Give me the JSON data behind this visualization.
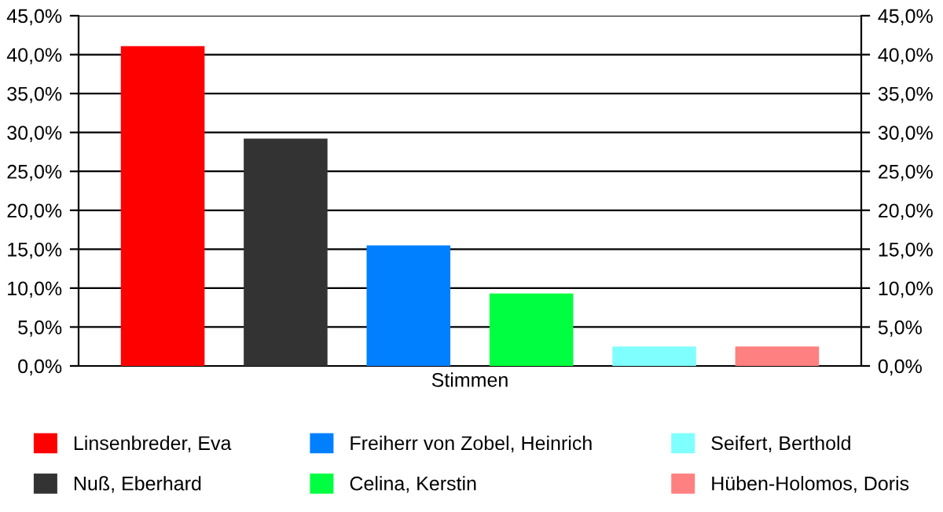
{
  "chart_data": {
    "type": "bar",
    "categories": [
      "Stimmen"
    ],
    "series": [
      {
        "name": "Linsenbreder, Eva",
        "color": "#ff0000",
        "values": [
          41.1
        ]
      },
      {
        "name": "Nuß, Eberhard",
        "color": "#333333",
        "values": [
          29.2
        ]
      },
      {
        "name": "Freiherr von Zobel, Heinrich",
        "color": "#0080ff",
        "values": [
          15.5
        ]
      },
      {
        "name": "Celina, Kerstin",
        "color": "#00ff40",
        "values": [
          9.3
        ]
      },
      {
        "name": "Seifert, Berthold",
        "color": "#80ffff",
        "values": [
          2.5
        ]
      },
      {
        "name": "Hüben-Holomos, Doris",
        "color": "#ff8080",
        "values": [
          2.5
        ]
      }
    ],
    "ylim": [
      0,
      45
    ],
    "yticks": [
      {
        "value": 0,
        "label": "0,0%"
      },
      {
        "value": 5,
        "label": "5,0%"
      },
      {
        "value": 10,
        "label": "10,0%"
      },
      {
        "value": 15,
        "label": "15,0%"
      },
      {
        "value": 20,
        "label": "20,0%"
      },
      {
        "value": 25,
        "label": "25,0%"
      },
      {
        "value": 30,
        "label": "30,0%"
      },
      {
        "value": 35,
        "label": "35,0%"
      },
      {
        "value": 40,
        "label": "40,0%"
      },
      {
        "value": 45,
        "label": "45,0%"
      }
    ],
    "grid": "y",
    "legend": "bottom"
  }
}
